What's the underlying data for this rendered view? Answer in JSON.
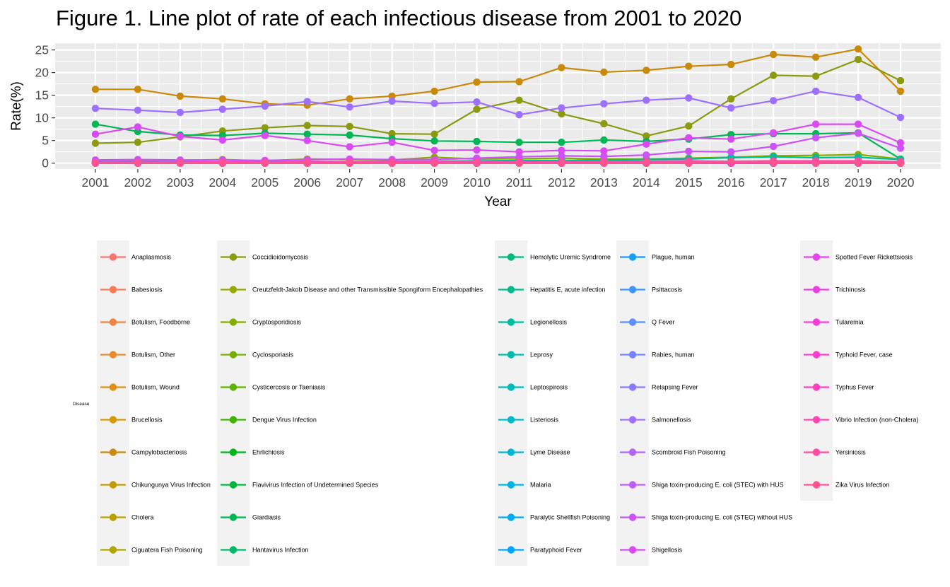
{
  "chart_data": {
    "type": "line",
    "title": "Figure 1. Line plot of rate of each infectious disease from 2001 to 2020",
    "xlabel": "Year",
    "ylabel": "Rate(%)",
    "x": [
      2001,
      2002,
      2003,
      2004,
      2005,
      2006,
      2007,
      2008,
      2009,
      2010,
      2011,
      2012,
      2013,
      2014,
      2015,
      2016,
      2017,
      2018,
      2019,
      2020
    ],
    "ylim": [
      -1.3,
      26.5
    ],
    "yticks": [
      0,
      5,
      10,
      15,
      20,
      25
    ],
    "grid": true,
    "legend": {
      "title": "Disease",
      "position": "bottom"
    },
    "series": [
      {
        "name": "Anaplasmosis",
        "color": "#F8766D",
        "values": [
          0,
          0,
          0,
          0,
          0,
          0,
          0,
          0,
          0,
          0,
          0,
          0,
          0,
          0,
          0,
          0,
          0,
          0,
          0,
          0
        ]
      },
      {
        "name": "Babesiosis",
        "color": "#F47D57",
        "values": [
          0,
          0,
          0,
          0,
          0,
          0,
          0,
          0,
          0,
          0,
          0,
          0,
          0,
          0,
          0,
          0,
          0,
          0,
          0,
          0
        ]
      },
      {
        "name": "Botulism, Foodborne",
        "color": "#EE8444",
        "values": [
          0,
          0,
          0,
          0,
          0,
          0,
          0,
          0,
          0,
          0,
          0,
          0,
          0,
          0,
          0,
          0,
          0,
          0,
          0,
          0
        ]
      },
      {
        "name": "Botulism, Other",
        "color": "#E88B2F",
        "values": [
          0,
          0,
          0,
          0,
          0,
          0,
          0,
          0,
          0,
          0,
          0,
          0,
          0,
          0,
          0,
          0,
          0,
          0,
          0,
          0
        ]
      },
      {
        "name": "Botulism, Wound",
        "color": "#E09115",
        "values": [
          0,
          0,
          0,
          0,
          0,
          0,
          0,
          0,
          0,
          0,
          0,
          0,
          0,
          0,
          0,
          0,
          0,
          0,
          0,
          0
        ]
      },
      {
        "name": "Brucellosis",
        "color": "#D89800",
        "values": [
          0,
          0,
          0,
          0,
          0,
          0,
          0,
          0,
          0,
          0,
          0,
          0,
          0,
          0,
          0,
          0,
          0,
          0,
          0,
          0
        ]
      },
      {
        "name": "Campylobacteriosis",
        "color": "#C98A0C",
        "values": [
          16.3,
          16.3,
          14.8,
          14.2,
          13.1,
          12.8,
          14.2,
          14.8,
          15.9,
          17.9,
          18.0,
          21.1,
          20.1,
          20.5,
          21.4,
          21.8,
          24.0,
          23.4,
          25.2,
          15.9
        ]
      },
      {
        "name": "Chikungunya Virus Infection",
        "color": "#C29A00",
        "values": [
          0,
          0,
          0,
          0,
          0,
          0,
          0,
          0,
          0,
          0,
          0,
          0,
          0,
          0,
          0.3,
          0.1,
          0,
          0,
          0,
          0
        ]
      },
      {
        "name": "Cholera",
        "color": "#B9A000",
        "values": [
          0,
          0,
          0,
          0,
          0,
          0,
          0,
          0,
          0,
          0,
          0,
          0,
          0,
          0,
          0,
          0,
          0,
          0,
          0,
          0
        ]
      },
      {
        "name": "Ciguatera Fish Poisoning",
        "color": "#AFA400",
        "values": [
          0,
          0,
          0,
          0,
          0,
          0,
          0,
          0,
          0,
          0,
          0,
          0,
          0,
          0,
          0,
          0,
          0,
          0,
          0,
          0
        ]
      },
      {
        "name": "Coccidioidomycosis",
        "color": "#8B9A0F",
        "values": [
          4.4,
          4.6,
          5.8,
          7.1,
          7.8,
          8.3,
          8.1,
          6.5,
          6.4,
          11.9,
          13.9,
          10.9,
          8.7,
          6.0,
          8.2,
          14.2,
          19.4,
          19.2,
          22.9,
          18.2
        ]
      },
      {
        "name": "Creutzfeldt-Jakob Disease and other Transmissible Spongiform Encephalopathies",
        "color": "#95A900",
        "values": [
          0.3,
          0.3,
          0.3,
          0.3,
          0.3,
          0.3,
          0.3,
          0.3,
          0.3,
          0.3,
          0.3,
          0.3,
          0.3,
          0.3,
          0.3,
          0.3,
          0.3,
          0.3,
          0.3,
          0.3
        ]
      },
      {
        "name": "Cryptosporidiosis",
        "color": "#86AC00",
        "values": [
          0.5,
          0.6,
          0.6,
          0.8,
          0.5,
          0.9,
          0.8,
          0.7,
          1.3,
          0.9,
          1.0,
          1.1,
          0.9,
          0.9,
          1.1,
          1.3,
          1.6,
          1.7,
          1.9,
          0.9
        ]
      },
      {
        "name": "Cyclosporiasis",
        "color": "#75AF00",
        "values": [
          0,
          0,
          0,
          0,
          0,
          0,
          0,
          0,
          0,
          0,
          0,
          0,
          0,
          0,
          0.1,
          0.1,
          0.2,
          0.2,
          0.2,
          0.1
        ]
      },
      {
        "name": "Cysticercosis or Taeniasis",
        "color": "#5FB200",
        "values": [
          0,
          0,
          0,
          0,
          0,
          0,
          0,
          0,
          0,
          0,
          0,
          0,
          0,
          0,
          0,
          0,
          0,
          0,
          0,
          0
        ]
      },
      {
        "name": "Dengue Virus Infection",
        "color": "#3DB400",
        "values": [
          0,
          0,
          0,
          0,
          0,
          0,
          0,
          0,
          0,
          0,
          0,
          0,
          0,
          0,
          0.2,
          0.1,
          0.1,
          0.1,
          0.2,
          0
        ]
      },
      {
        "name": "Ehrlichiosis",
        "color": "#00B51B",
        "values": [
          0,
          0,
          0,
          0,
          0,
          0,
          0,
          0,
          0,
          0,
          0,
          0,
          0,
          0,
          0,
          0,
          0,
          0,
          0,
          0
        ]
      },
      {
        "name": "Flavivirus Infection of Undetermined Species",
        "color": "#00B63E",
        "values": [
          0,
          0,
          0,
          0,
          0,
          0,
          0,
          0,
          0,
          0,
          0,
          0,
          0,
          0,
          0,
          0,
          0,
          0,
          0,
          0
        ]
      },
      {
        "name": "Giardiasis",
        "color": "#00B754",
        "values": [
          8.6,
          7.0,
          6.2,
          6.1,
          6.6,
          6.4,
          6.2,
          5.4,
          4.9,
          4.8,
          4.6,
          4.6,
          5.1,
          4.8,
          5.3,
          6.3,
          6.5,
          6.5,
          6.7,
          0.9
        ]
      },
      {
        "name": "Hantavirus Infection",
        "color": "#00B868",
        "values": [
          0,
          0,
          0,
          0,
          0,
          0,
          0,
          0,
          0,
          0,
          0,
          0,
          0,
          0,
          0,
          0,
          0,
          0,
          0,
          0
        ]
      },
      {
        "name": "Hemolytic Uremic Syndrome",
        "color": "#00BA7A",
        "values": [
          0,
          0,
          0,
          0,
          0,
          0,
          0,
          0,
          0,
          0,
          0,
          0,
          0,
          0,
          0,
          0,
          0,
          0,
          0,
          0
        ]
      },
      {
        "name": "Hepatitis E, acute infection",
        "color": "#00BB8B",
        "values": [
          0,
          0,
          0,
          0,
          0,
          0,
          0,
          0,
          0,
          0,
          0,
          0,
          0,
          0,
          0,
          0,
          0,
          0,
          0,
          0
        ]
      },
      {
        "name": "Legionellosis",
        "color": "#00BC9C",
        "values": [
          0.2,
          0.3,
          0.3,
          0.3,
          0.3,
          0.4,
          0.3,
          0.4,
          0.4,
          0.5,
          0.6,
          0.6,
          0.7,
          0.8,
          0.9,
          1.2,
          1.4,
          1.2,
          1.3,
          0.8
        ]
      },
      {
        "name": "Leprosy",
        "color": "#00BCAC",
        "values": [
          0,
          0,
          0,
          0,
          0,
          0,
          0,
          0,
          0,
          0,
          0,
          0,
          0,
          0,
          0,
          0,
          0,
          0,
          0,
          0
        ]
      },
      {
        "name": "Leptospirosis",
        "color": "#00BBBB",
        "values": [
          0,
          0,
          0,
          0,
          0,
          0,
          0,
          0,
          0,
          0,
          0,
          0,
          0,
          0,
          0,
          0,
          0,
          0,
          0,
          0
        ]
      },
      {
        "name": "Listeriosis",
        "color": "#00B9CA",
        "values": [
          0.3,
          0.3,
          0.3,
          0.3,
          0.3,
          0.3,
          0.3,
          0.3,
          0.3,
          0.3,
          0.3,
          0.3,
          0.3,
          0.3,
          0.3,
          0.3,
          0.3,
          0.3,
          0.3,
          0.2
        ]
      },
      {
        "name": "Lyme Disease",
        "color": "#00B6D8",
        "values": [
          0.2,
          0.2,
          0.2,
          0.2,
          0.2,
          0.2,
          0.2,
          0.2,
          0.2,
          0.3,
          0.2,
          0.2,
          0.2,
          0.2,
          0.3,
          0.3,
          0.3,
          0.3,
          0.3,
          0.1
        ]
      },
      {
        "name": "Malaria",
        "color": "#00B2E6",
        "values": [
          0.3,
          0.3,
          0.3,
          0.3,
          0.3,
          0.3,
          0.3,
          0.3,
          0.3,
          0.3,
          0.3,
          0.3,
          0.3,
          0.3,
          0.3,
          0.3,
          0.3,
          0.3,
          0.3,
          0.1
        ]
      },
      {
        "name": "Paralytic Shellfish Poisoning",
        "color": "#00ACF0",
        "values": [
          0,
          0,
          0,
          0,
          0,
          0,
          0,
          0,
          0,
          0,
          0,
          0,
          0,
          0,
          0,
          0,
          0,
          0,
          0,
          0
        ]
      },
      {
        "name": "Paratyphoid Fever",
        "color": "#00A6FF",
        "values": [
          0,
          0,
          0,
          0,
          0,
          0,
          0,
          0,
          0,
          0,
          0,
          0,
          0,
          0,
          0,
          0,
          0,
          0,
          0,
          0
        ]
      },
      {
        "name": "Plague, human",
        "color": "#159FFF",
        "values": [
          0,
          0,
          0,
          0,
          0,
          0,
          0,
          0,
          0,
          0,
          0,
          0,
          0,
          0,
          0,
          0,
          0,
          0,
          0,
          0
        ]
      },
      {
        "name": "Psittacosis",
        "color": "#3D97FF",
        "values": [
          0,
          0,
          0,
          0,
          0,
          0,
          0,
          0,
          0,
          0,
          0,
          0,
          0,
          0,
          0,
          0,
          0,
          0,
          0,
          0
        ]
      },
      {
        "name": "Q Fever",
        "color": "#5B8EFF",
        "values": [
          0,
          0,
          0,
          0,
          0,
          0,
          0,
          0,
          0,
          0,
          0,
          0,
          0,
          0,
          0,
          0,
          0,
          0,
          0,
          0
        ]
      },
      {
        "name": "Rabies, human",
        "color": "#7484FF",
        "values": [
          0,
          0,
          0,
          0,
          0,
          0,
          0,
          0,
          0,
          0,
          0,
          0,
          0,
          0,
          0,
          0,
          0,
          0,
          0,
          0
        ]
      },
      {
        "name": "Relapsing Fever",
        "color": "#8A7AFF",
        "values": [
          0,
          0,
          0,
          0,
          0,
          0,
          0,
          0,
          0,
          0,
          0,
          0,
          0,
          0,
          0,
          0,
          0,
          0,
          0,
          0
        ]
      },
      {
        "name": "Salmonellosis",
        "color": "#9D70FF",
        "values": [
          12.1,
          11.7,
          11.2,
          11.9,
          12.6,
          13.6,
          12.4,
          13.7,
          13.2,
          13.5,
          10.7,
          12.2,
          13.1,
          13.9,
          14.4,
          12.2,
          13.8,
          15.9,
          14.5,
          10.1
        ]
      },
      {
        "name": "Scombroid Fish Poisoning",
        "color": "#AE66FF",
        "values": [
          0,
          0,
          0,
          0,
          0,
          0,
          0,
          0,
          0,
          0,
          0,
          0,
          0,
          0,
          0,
          0,
          0,
          0,
          0,
          0
        ]
      },
      {
        "name": "Shiga toxin-producing E. coli (STEC) with HUS",
        "color": "#BE5CFD",
        "values": [
          0,
          0,
          0,
          0,
          0,
          0,
          0,
          0,
          0,
          0,
          0,
          0,
          0,
          0,
          0,
          0,
          0,
          0,
          0,
          0
        ]
      },
      {
        "name": "Shiga toxin-producing E. coli (STEC) without HUS",
        "color": "#CB53F8",
        "values": [
          0.7,
          0.8,
          0.7,
          0.7,
          0.6,
          0.8,
          0.9,
          0.8,
          0.8,
          1.1,
          1.4,
          1.6,
          1.5,
          1.8,
          2.6,
          2.5,
          3.7,
          5.6,
          6.6,
          3.3
        ]
      },
      {
        "name": "Shigellosis",
        "color": "#D84BF2",
        "values": [
          6.4,
          8.0,
          5.9,
          5.1,
          6.1,
          5.0,
          3.6,
          4.6,
          2.8,
          2.9,
          2.5,
          2.8,
          2.7,
          4.2,
          5.6,
          5.3,
          6.7,
          8.6,
          8.6,
          4.5
        ]
      },
      {
        "name": "Spotted Fever Rickettsiosis",
        "color": "#E344EB",
        "values": [
          0,
          0,
          0,
          0,
          0,
          0,
          0,
          0,
          0,
          0,
          0,
          0,
          0,
          0,
          0,
          0,
          0,
          0,
          0,
          0
        ]
      },
      {
        "name": "Trichinosis",
        "color": "#EC3FE3",
        "values": [
          0,
          0,
          0,
          0,
          0,
          0,
          0,
          0,
          0,
          0,
          0,
          0,
          0,
          0,
          0,
          0,
          0,
          0,
          0,
          0
        ]
      },
      {
        "name": "Tularemia",
        "color": "#F43CDA",
        "values": [
          0,
          0,
          0,
          0,
          0,
          0,
          0,
          0,
          0,
          0,
          0,
          0,
          0,
          0,
          0,
          0,
          0,
          0,
          0,
          0
        ]
      },
      {
        "name": "Typhoid Fever, case",
        "color": "#F93DCE",
        "values": [
          0.1,
          0.1,
          0.1,
          0.1,
          0.1,
          0.1,
          0.1,
          0.1,
          0.1,
          0.1,
          0.1,
          0.1,
          0.1,
          0.1,
          0.1,
          0.1,
          0.1,
          0.1,
          0.1,
          0
        ]
      },
      {
        "name": "Typhus Fever",
        "color": "#FD40C1",
        "values": [
          0.1,
          0.1,
          0.1,
          0.1,
          0.1,
          0.1,
          0.1,
          0.1,
          0.1,
          0.1,
          0.1,
          0.1,
          0.1,
          0.1,
          0.1,
          0.1,
          0.2,
          0.2,
          0.2,
          0.1
        ]
      },
      {
        "name": "Vibrio Infection (non-Cholera)",
        "color": "#FF45B2",
        "values": [
          0.2,
          0.2,
          0.2,
          0.3,
          0.2,
          0.3,
          0.3,
          0.3,
          0.3,
          0.3,
          0.3,
          0.3,
          0.4,
          0.4,
          0.5,
          0.4,
          0.5,
          0.5,
          0.5,
          0.3
        ]
      },
      {
        "name": "Yersiniosis",
        "color": "#FF4CA3",
        "values": [
          0.1,
          0.1,
          0.1,
          0.1,
          0.1,
          0.1,
          0.1,
          0.1,
          0.1,
          0.1,
          0.1,
          0.1,
          0.2,
          0.2,
          0.2,
          0.2,
          0.3,
          0.4,
          0.5,
          0.3
        ]
      },
      {
        "name": "Zika Virus Infection",
        "color": "#FF5391",
        "values": [
          0,
          0,
          0,
          0,
          0,
          0,
          0,
          0,
          0,
          0,
          0,
          0,
          0,
          0,
          0,
          0.3,
          0.1,
          0,
          0,
          0
        ]
      }
    ]
  }
}
